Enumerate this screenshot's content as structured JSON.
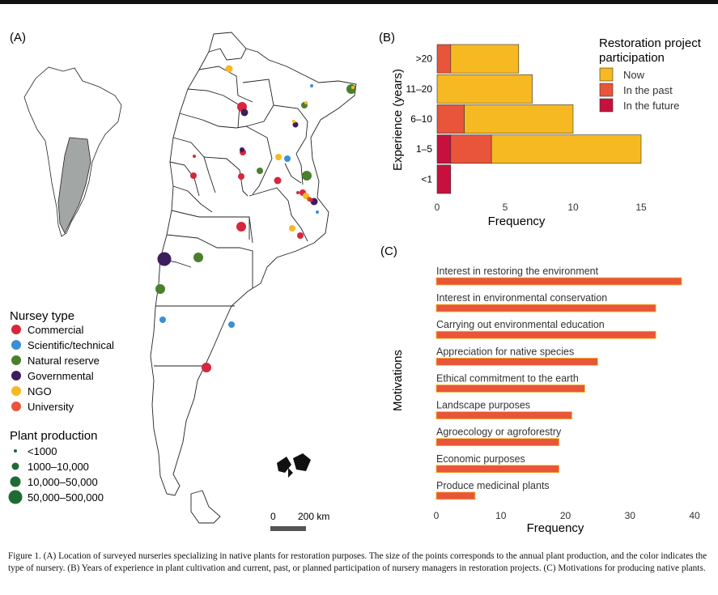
{
  "figure": {
    "panel_a_label": "(A)",
    "panel_b_label": "(B)",
    "panel_c_label": "(C)",
    "caption_label": "Figure 1.",
    "caption_text": "(A) Location of surveyed nurseries specializing in native plants for restoration purposes. The size of the points corresponds to the annual plant production, and the color indicates the type of nursery. (B) Years of experience in plant cultivation and current, past, or planned participation of nursery managers in restoration projects. (C) Motivations for producing native plants."
  },
  "map": {
    "legend_type_title": "Nursey type",
    "types": [
      {
        "label": "Commercial",
        "color": "#d7263d"
      },
      {
        "label": "Scientific/technical",
        "color": "#3a8fd6"
      },
      {
        "label": "Natural reserve",
        "color": "#4a7f2c"
      },
      {
        "label": "Governmental",
        "color": "#3b1e5c"
      },
      {
        "label": "NGO",
        "color": "#f6b921"
      },
      {
        "label": "University",
        "color": "#e8553a"
      }
    ],
    "legend_size_title": "Plant production",
    "sizes": [
      "<1000",
      "1000–10,000",
      "10,000–50,000",
      "50,000–500,000"
    ],
    "size_color": "#1f6b33",
    "scale_label_start": "0",
    "scale_label_end": "200 km"
  },
  "chart_data": [
    {
      "type": "bar",
      "orientation": "horizontal",
      "stacked": true,
      "panel": "B",
      "categories": [
        ">20",
        "11–20",
        "6–10",
        "1–5",
        "<1"
      ],
      "series": [
        {
          "name": "In the future",
          "color": "#c8103e",
          "values": [
            0,
            0,
            0,
            1,
            1
          ]
        },
        {
          "name": "In the past",
          "color": "#e8553a",
          "values": [
            1,
            0,
            2,
            3,
            0
          ]
        },
        {
          "name": "Now",
          "color": "#f6b921",
          "values": [
            5,
            7,
            8,
            11,
            0
          ]
        }
      ],
      "legend_title": "Restoration project participation",
      "legend_order": [
        "Now",
        "In the past",
        "In the future"
      ],
      "xlabel": "Frequency",
      "ylabel": "Experience (years)",
      "xlim": [
        0,
        15
      ],
      "xticks": [
        0,
        5,
        10,
        15
      ]
    },
    {
      "type": "bar",
      "orientation": "horizontal",
      "panel": "C",
      "categories": [
        "Interest in restoring the environment",
        "Interest in environmental conservation",
        "Carrying out environmental education",
        "Appreciation for native species",
        "Ethical commitment to the earth",
        "Landscape purposes",
        "Agroecology or agroforestry",
        "Economic purposes",
        "Produce medicinal plants"
      ],
      "values": [
        38,
        34,
        34,
        25,
        23,
        21,
        19,
        19,
        6
      ],
      "color": "#e8553a",
      "xlabel": "Frequency",
      "ylabel": "Motivations",
      "xlim": [
        0,
        40
      ],
      "xticks": [
        0,
        10,
        20,
        30,
        40
      ]
    }
  ]
}
